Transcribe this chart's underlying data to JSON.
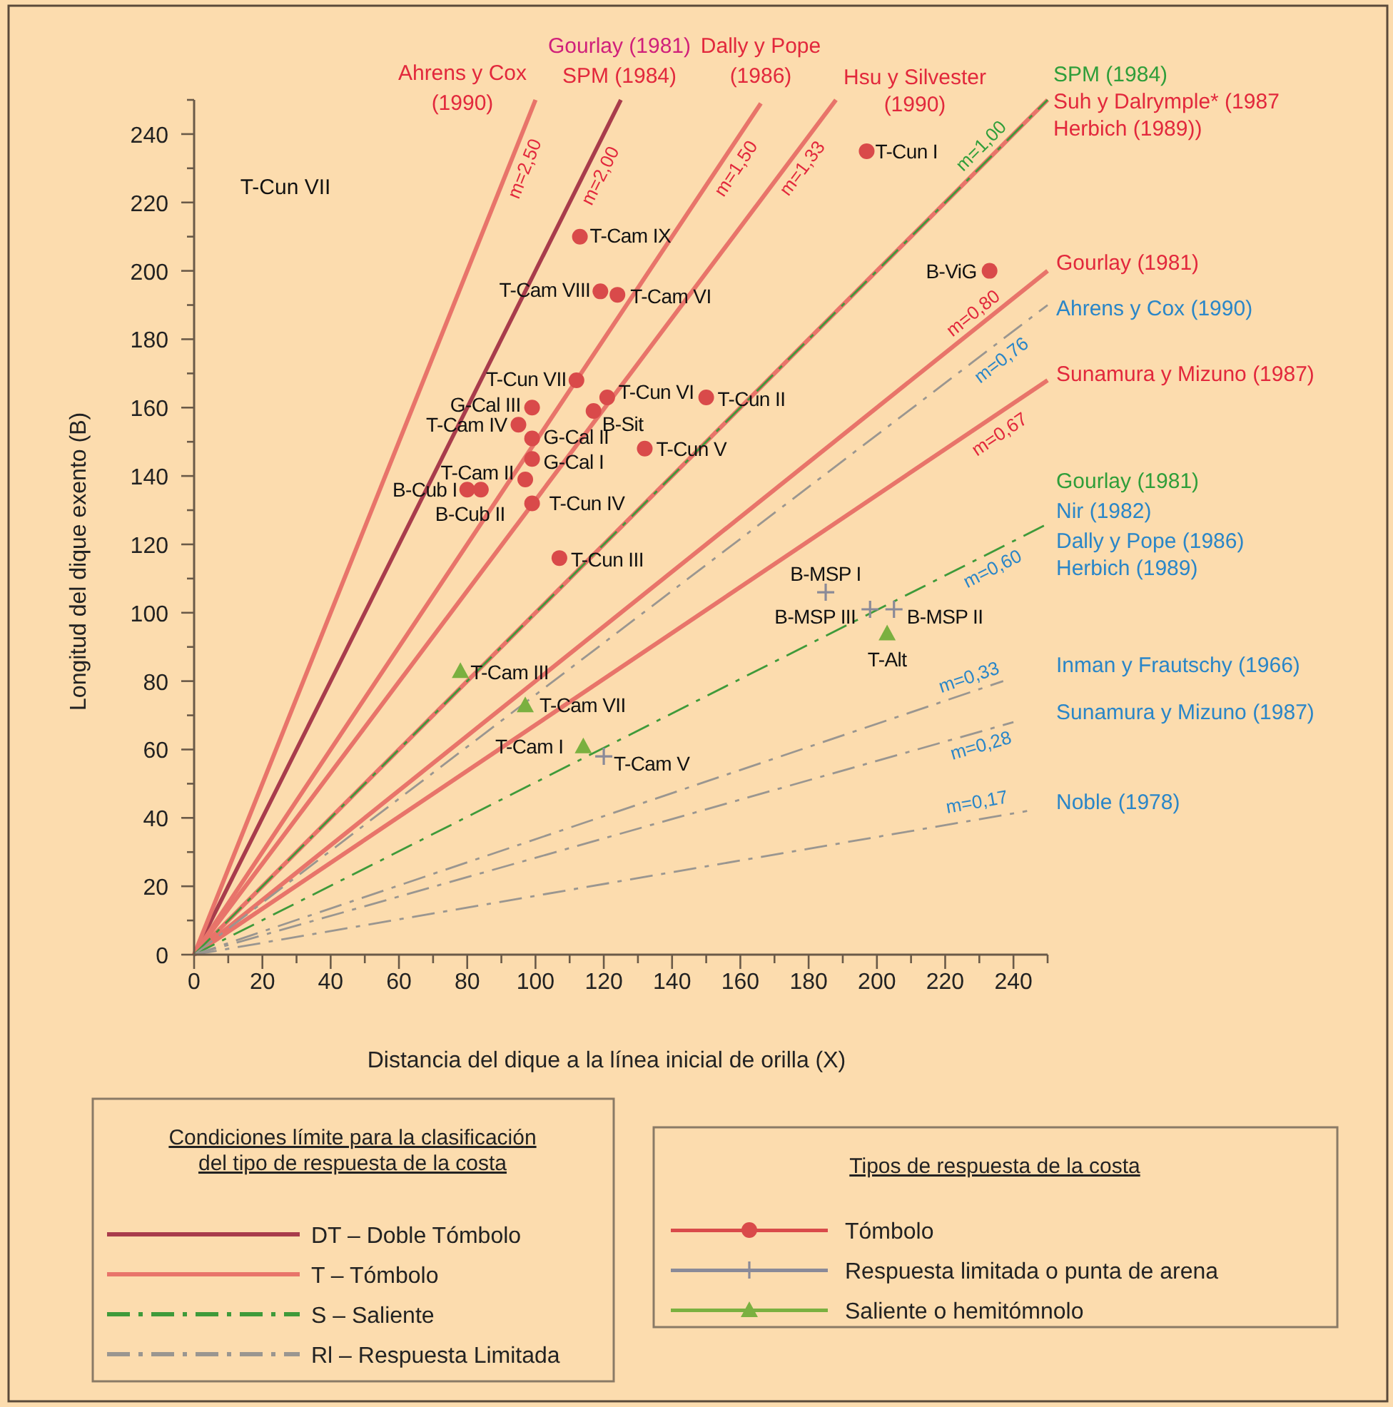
{
  "chart_data": {
    "type": "scatter",
    "xlabel": "Distancia del dique a la línea inicial de orilla (X)",
    "ylabel": "Longitud del dique exento (B)",
    "xlim": [
      0,
      250
    ],
    "ylim": [
      0,
      250
    ],
    "xticks": [
      0,
      {
        "value": 10,
        "label": null
      },
      20,
      {
        "value": 30,
        "label": null
      },
      40,
      {
        "value": 50,
        "label": null
      },
      60,
      {
        "value": 70,
        "label": null
      },
      80,
      {
        "value": 90,
        "label": null
      },
      100,
      {
        "value": 110,
        "label": null
      },
      120,
      {
        "value": 130,
        "label": null
      },
      140,
      {
        "value": 150,
        "label": null
      },
      160,
      {
        "value": 170,
        "label": null
      },
      180,
      {
        "value": 190,
        "label": null
      },
      200,
      {
        "value": 210,
        "label": null
      },
      220,
      {
        "value": 230,
        "label": null
      },
      240,
      {
        "value": 250,
        "label": null
      }
    ],
    "yticks": [
      0,
      {
        "value": 10,
        "label": null
      },
      20,
      {
        "value": 30,
        "label": null
      },
      40,
      {
        "value": 50,
        "label": null
      },
      60,
      {
        "value": 70,
        "label": null
      },
      80,
      {
        "value": 90,
        "label": null
      },
      100,
      {
        "value": 110,
        "label": null
      },
      120,
      {
        "value": 130,
        "label": null
      },
      140,
      {
        "value": 150,
        "label": null
      },
      160,
      {
        "value": 170,
        "label": null
      },
      180,
      {
        "value": 190,
        "label": null
      },
      200,
      {
        "value": 210,
        "label": null
      },
      220,
      {
        "value": 230,
        "label": null
      },
      240,
      {
        "value": 250,
        "label": null
      }
    ],
    "legend": "bottom",
    "legend_title": "Condiciones límite para la clasificación del tipo de respuesta de la costa",
    "series": [
      {
        "name": "DT – Doble Tómbolo",
        "type": "line",
        "color": "#a83c4c",
        "line_style": "solid",
        "x": [
          0,
          125
        ],
        "values": [
          0,
          250
        ]
      },
      {
        "name": "T – Tómbolo",
        "type": "line",
        "color": "#e8746a",
        "line_style": "solid",
        "x": [
          0,
          100
        ],
        "values": [
          0,
          250
        ]
      },
      {
        "type": "line",
        "color": "#e8746a",
        "line_style": "solid",
        "x": [
          0,
          166
        ],
        "values": [
          0,
          249
        ]
      },
      {
        "type": "line",
        "color": "#e8746a",
        "line_style": "solid",
        "x": [
          0,
          188
        ],
        "values": [
          0,
          250
        ]
      },
      {
        "type": "line",
        "color": "#e8746a",
        "line_style": "solid",
        "x": [
          0,
          250
        ],
        "values": [
          0,
          250
        ]
      },
      {
        "type": "line",
        "color": "#e8746a",
        "line_style": "solid",
        "x": [
          0,
          250
        ],
        "values": [
          0,
          200
        ]
      },
      {
        "type": "line",
        "color": "#e8746a",
        "line_style": "solid",
        "x": [
          0,
          250
        ],
        "values": [
          0,
          168
        ]
      },
      {
        "name": "S – Saliente",
        "type": "line",
        "color": "#3f9a3a",
        "line_style": "dashed",
        "x": [
          0,
          250
        ],
        "values": [
          0,
          250
        ]
      },
      {
        "type": "line",
        "color": "#3f9a3a",
        "line_style": "dashed",
        "x": [
          0,
          250
        ],
        "values": [
          0,
          126
        ]
      },
      {
        "name": "Rl – Respuesta Limitada",
        "type": "line",
        "color": "#9a9690",
        "line_style": "dashed",
        "x": [
          0,
          250
        ],
        "values": [
          0,
          190
        ]
      },
      {
        "type": "line",
        "color": "#9a9690",
        "line_style": "dashed",
        "x": [
          0,
          237
        ],
        "values": [
          0,
          80
        ]
      },
      {
        "type": "line",
        "color": "#9a9690",
        "line_style": "dashed",
        "x": [
          0,
          240
        ],
        "values": [
          0,
          68
        ]
      },
      {
        "type": "line",
        "color": "#9a9690",
        "line_style": "dashed",
        "x": [
          0,
          244
        ],
        "values": [
          0,
          42
        ]
      },
      {
        "name": "Tómbolo",
        "color": "#d94a4a",
        "marker": "circle",
        "x": [
          113,
          119,
          124,
          112,
          121,
          150,
          117,
          99,
          95,
          99,
          99,
          132,
          97,
          80,
          84,
          99,
          107,
          197,
          233
        ],
        "values": [
          210,
          194,
          193,
          168,
          163,
          163,
          159,
          160,
          155,
          151,
          145,
          148,
          139,
          136,
          136,
          132,
          116,
          235,
          200
        ]
      },
      {
        "name": "Respuesta limitada o punta de arena",
        "color": "#8a8a98",
        "marker": "cross",
        "x": [
          120,
          185,
          198,
          205
        ],
        "values": [
          58,
          106,
          101,
          101
        ]
      },
      {
        "name": "Saliente o hemitómnolo",
        "color": "#7ab040",
        "marker": "triangle",
        "x": [
          78,
          97,
          114,
          203
        ],
        "values": [
          83,
          73,
          61,
          94
        ]
      }
    ],
    "annotations": [
      "Ahrens y Cox",
      "(1990)",
      "Gourlay  (1981)",
      "SPM (1984)",
      "Dally y Pope",
      "(1986)",
      "Hsu y Silvester",
      "(1990)",
      "SPM (1984)",
      "Suh y Dalrymple* (1987",
      "Herbich (1989))",
      "Gourlay  (1981)",
      "Ahrens y Cox (1990)",
      "Sunamura y Mizuno (1987)",
      "Gourlay  (1981)",
      "Nir (1982)",
      "Dally y Pope (1986)",
      "Herbich (1989)",
      "Inman y Frautschy (1966)",
      "Sunamura y Mizuno (1987)",
      "Noble (1978)",
      "T-Cun VII",
      "Tipos de respuesta de la costa",
      {
        "text": "m=2,50",
        "x": 96,
        "y": 240
      },
      {
        "text": "m=2,00",
        "x": 119,
        "y": 238
      },
      {
        "text": "m=1,50",
        "x": 160,
        "y": 240
      },
      {
        "text": "m=1,33",
        "x": 180,
        "y": 240
      },
      {
        "text": "m=1,00",
        "x": 240,
        "y": 240
      },
      {
        "text": "m=0,80",
        "x": 238,
        "y": 190
      },
      {
        "text": "m=0,76",
        "x": 241,
        "y": 183
      },
      {
        "text": "m=0,67",
        "x": 241,
        "y": 161
      },
      {
        "text": "m=0,60",
        "x": 240,
        "y": 121
      },
      {
        "text": "m=0,33",
        "x": 237,
        "y": 80
      },
      {
        "text": "m=0,28",
        "x": 238,
        "y": 68
      },
      {
        "text": "m=0,17",
        "x": 239,
        "y": 42
      },
      {
        "text": "T-Cam IX",
        "x": 113,
        "y": 210
      },
      {
        "text": "T-Cam VIII",
        "x": 119,
        "y": 194
      },
      {
        "text": "T-Cam VI",
        "x": 124,
        "y": 193
      },
      {
        "text": "T-Cun VII",
        "x": 112,
        "y": 168
      },
      {
        "text": "T-Cun VI",
        "x": 121,
        "y": 163
      },
      {
        "text": "T-Cun II",
        "x": 150,
        "y": 163
      },
      {
        "text": "B-Sit",
        "x": 117,
        "y": 159
      },
      {
        "text": "G-Cal III",
        "x": 99,
        "y": 160
      },
      {
        "text": "T-Cam IV",
        "x": 95,
        "y": 155
      },
      {
        "text": "G-Cal II",
        "x": 99,
        "y": 151
      },
      {
        "text": "G-Cal I",
        "x": 99,
        "y": 145
      },
      {
        "text": "T-Cun V",
        "x": 132,
        "y": 148
      },
      {
        "text": "T-Cam II",
        "x": 97,
        "y": 139
      },
      {
        "text": "B-Cub I",
        "x": 80,
        "y": 136
      },
      {
        "text": "B-Cub II",
        "x": 84,
        "y": 136
      },
      {
        "text": "T-Cun IV",
        "x": 99,
        "y": 132
      },
      {
        "text": "T-Cun III",
        "x": 107,
        "y": 116
      },
      {
        "text": "T-Cun I",
        "x": 197,
        "y": 235
      },
      {
        "text": "B-ViG",
        "x": 233,
        "y": 200
      },
      {
        "text": "T-Cam III",
        "x": 78,
        "y": 83
      },
      {
        "text": "T-Cam VII",
        "x": 97,
        "y": 73
      },
      {
        "text": "T-Cam I",
        "x": 114,
        "y": 61
      },
      {
        "text": "T-Cam V",
        "x": 120,
        "y": 58
      },
      {
        "text": "B-MSP I",
        "x": 185,
        "y": 106
      },
      {
        "text": "B-MSP III",
        "x": 198,
        "y": 101
      },
      {
        "text": "B-MSP II",
        "x": 205,
        "y": 101
      },
      {
        "text": "T-Alt",
        "x": 203,
        "y": 94
      }
    ]
  }
}
